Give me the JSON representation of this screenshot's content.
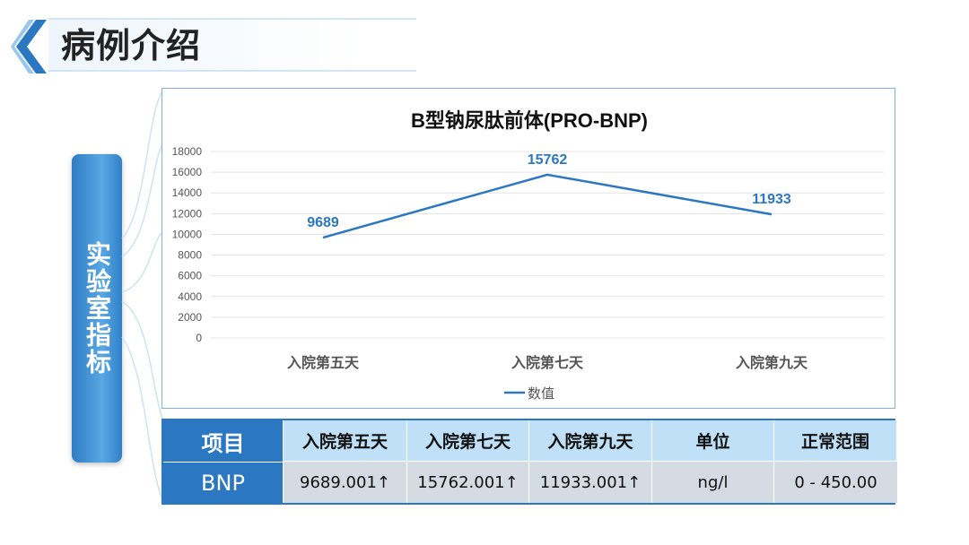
{
  "header": {
    "title": "病例介绍"
  },
  "side": {
    "label": "实验室指标"
  },
  "chart_data": {
    "type": "line",
    "title": "B型钠尿肽前体(PRO-BNP)",
    "categories": [
      "入院第五天",
      "入院第七天",
      "入院第九天"
    ],
    "series": [
      {
        "name": "数值",
        "values": [
          9689,
          15762,
          11933
        ],
        "color": "#2b77c1"
      }
    ],
    "data_labels": [
      "9689",
      "15762",
      "11933"
    ],
    "ylim": [
      0,
      18000
    ],
    "yticks": [
      "0",
      "2000",
      "4000",
      "6000",
      "8000",
      "10000",
      "12000",
      "14000",
      "16000",
      "18000"
    ],
    "grid": true,
    "legend": "bottom"
  },
  "table": {
    "headers": [
      "项目",
      "入院第五天",
      "入院第七天",
      "入院第九天",
      "单位",
      "正常范围"
    ],
    "row": [
      "BNP",
      "9689.001↑",
      "15762.001↑",
      "11933.001↑",
      "ng/l",
      "0 - 450.00"
    ]
  },
  "colors": {
    "accent": "#2b77c1",
    "header_cell": "#bfe0f6",
    "value_cell": "#d5dbe2"
  }
}
